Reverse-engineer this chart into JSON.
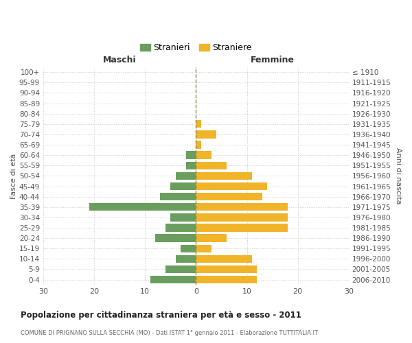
{
  "age_groups": [
    "0-4",
    "5-9",
    "10-14",
    "15-19",
    "20-24",
    "25-29",
    "30-34",
    "35-39",
    "40-44",
    "45-49",
    "50-54",
    "55-59",
    "60-64",
    "65-69",
    "70-74",
    "75-79",
    "80-84",
    "85-89",
    "90-94",
    "95-99",
    "100+"
  ],
  "birth_years": [
    "2006-2010",
    "2001-2005",
    "1996-2000",
    "1991-1995",
    "1986-1990",
    "1981-1985",
    "1976-1980",
    "1971-1975",
    "1966-1970",
    "1961-1965",
    "1956-1960",
    "1951-1955",
    "1946-1950",
    "1941-1945",
    "1936-1940",
    "1931-1935",
    "1926-1930",
    "1921-1925",
    "1916-1920",
    "1911-1915",
    "≤ 1910"
  ],
  "maschi": [
    9,
    6,
    4,
    3,
    8,
    6,
    5,
    21,
    7,
    5,
    4,
    2,
    2,
    0,
    0,
    0,
    0,
    0,
    0,
    0,
    0
  ],
  "femmine": [
    12,
    12,
    11,
    3,
    6,
    18,
    18,
    18,
    13,
    14,
    11,
    6,
    3,
    1,
    4,
    1,
    0,
    0,
    0,
    0,
    0
  ],
  "maschi_color": "#6a9e5e",
  "femmine_color": "#f0b429",
  "background_color": "#ffffff",
  "grid_color": "#cccccc",
  "center_line_color": "#888855",
  "title": "Popolazione per cittadinanza straniera per età e sesso - 2011",
  "subtitle": "COMUNE DI PRIGNANO SULLA SECCHIA (MO) - Dati ISTAT 1° gennaio 2011 - Elaborazione TUTTITALIA.IT",
  "ylabel_left": "Fasce di età",
  "ylabel_right": "Anni di nascita",
  "xlabel_maschi": "Maschi",
  "xlabel_femmine": "Femmine",
  "legend_maschi": "Stranieri",
  "legend_femmine": "Straniere",
  "xlim": 30
}
